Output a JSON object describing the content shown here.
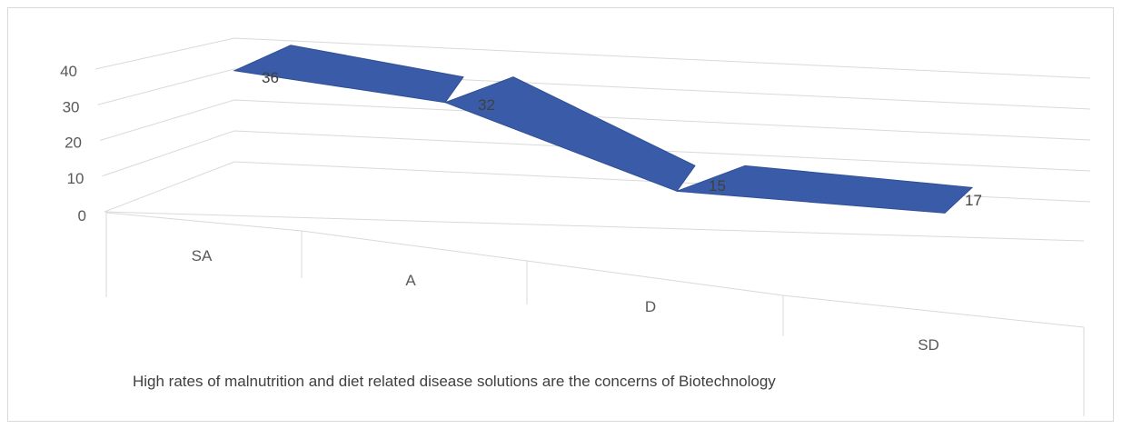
{
  "chart_data": {
    "type": "line",
    "style": "3d-ribbon",
    "title": "",
    "categories": [
      "SA",
      "A",
      "D",
      "SD"
    ],
    "series": [
      {
        "values": [
          36,
          32,
          15,
          17
        ],
        "color": "#3a5ca8"
      }
    ],
    "xlabel": "High rates of malnutrition and diet related disease solutions are the concerns of Biotechnology",
    "ylabel": "",
    "yticks": [
      "0",
      "10",
      "20",
      "30",
      "40"
    ],
    "ylim": [
      0,
      40
    ],
    "data_labels": [
      "36",
      "32",
      "15",
      "17"
    ],
    "grid": true,
    "legend": "none"
  }
}
